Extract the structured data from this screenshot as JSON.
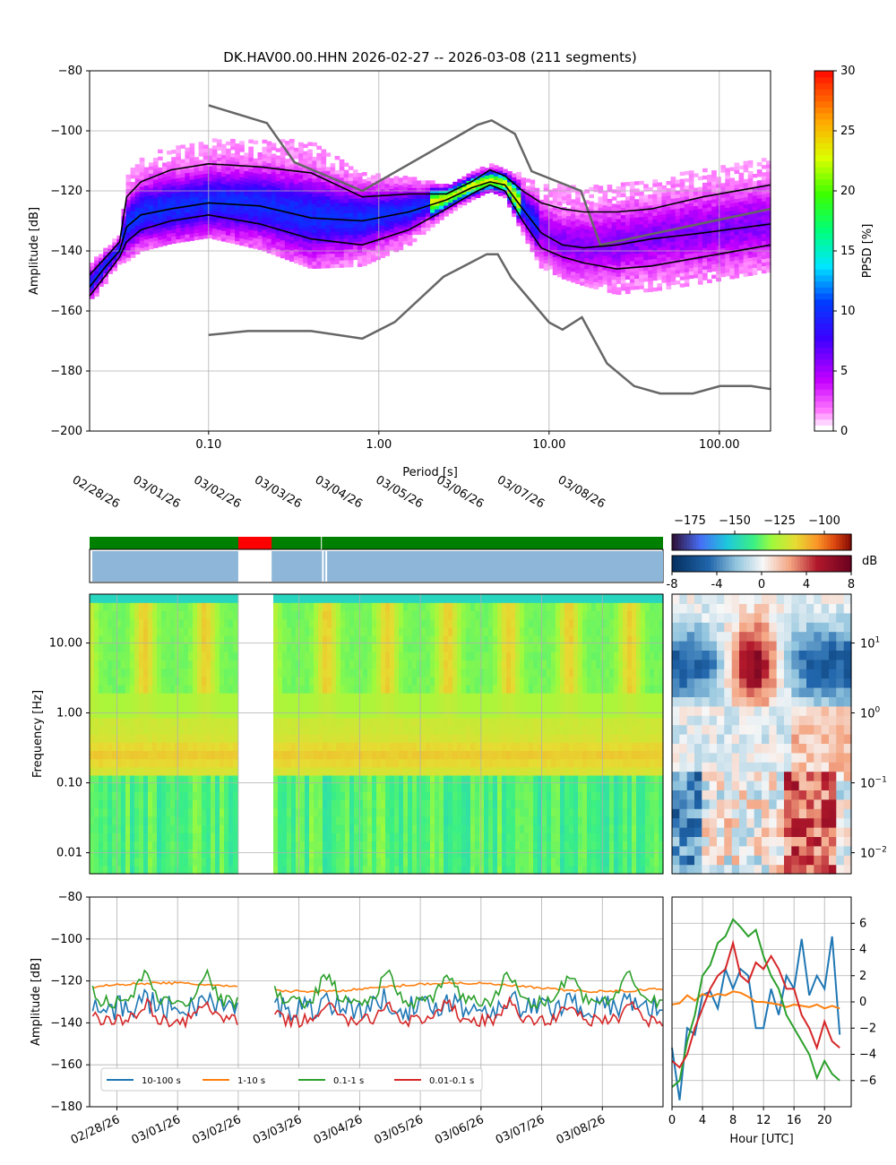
{
  "title": "DK.HAV00.00.HHN   2026-02-27 -- 2026-03-08  (211 segments)",
  "colors": {
    "model": "#666666",
    "percentile": "#000000",
    "grid": "#b0b0b0",
    "availability_ok": "#008000",
    "availability_gap": "#ff0000",
    "data_coverage": "#8db6d8",
    "band_10_100": "#1f77b4",
    "band_1_10": "#ff7f0e",
    "band_01_1": "#2ca02c",
    "band_001_01": "#d62728"
  },
  "chart_data": [
    {
      "id": "ppsd",
      "type": "heatmap",
      "xlabel": "Period [s]",
      "ylabel": "Amplitude [dB]",
      "xscale": "log",
      "xlim": [
        0.02,
        200
      ],
      "ylim": [
        -200,
        -80
      ],
      "xticks": [
        {
          "v": 0.1,
          "label": "0.10"
        },
        {
          "v": 1,
          "label": "1.00"
        },
        {
          "v": 10,
          "label": "10.00"
        },
        {
          "v": 100,
          "label": "100.00"
        }
      ],
      "yticks": [
        -200,
        -180,
        -160,
        -140,
        -120,
        -100,
        -80
      ],
      "ytick_labels": [
        "−200",
        "−180",
        "−160",
        "−140",
        "−120",
        "−100",
        "−80"
      ],
      "colorbar": {
        "label": "PPSD [%]",
        "min": 0,
        "max": 30,
        "ticks": [
          "0",
          "5",
          "10",
          "15",
          "20",
          "25",
          "30"
        ]
      },
      "nhnm": {
        "period": [
          0.1,
          0.22,
          0.32,
          0.8,
          3.8,
          4.6,
          6.3,
          7.9,
          15.4,
          20,
          200
        ],
        "db": [
          -91.5,
          -97.4,
          -110.5,
          -120,
          -98,
          -96.5,
          -101,
          -113.5,
          -120,
          -138,
          -126
        ]
      },
      "nlnm": {
        "period": [
          0.1,
          0.17,
          0.4,
          0.8,
          1.24,
          2.4,
          4.3,
          5,
          6,
          10,
          12,
          15.6,
          21.9,
          31.6,
          45,
          70,
          101,
          154,
          200
        ],
        "db": [
          -168,
          -166.7,
          -166.7,
          -169.2,
          -163.7,
          -148.6,
          -141.1,
          -141.1,
          -149,
          -163.8,
          -166.2,
          -162.1,
          -177.5,
          -185,
          -187.5,
          -187.5,
          -185,
          -185,
          -186
        ]
      },
      "median": {
        "period": [
          0.02,
          0.025,
          0.03,
          0.033,
          0.04,
          0.06,
          0.1,
          0.2,
          0.4,
          0.8,
          1.5,
          2.5,
          3.5,
          4.5,
          5.5,
          7,
          9,
          12,
          16,
          25,
          40,
          80,
          200
        ],
        "db": [
          -152,
          -145,
          -140,
          -132,
          -128,
          -126,
          -124,
          -125,
          -129,
          -130,
          -127,
          -123,
          -119,
          -117,
          -118,
          -126,
          -134,
          -138,
          -139,
          -138,
          -136,
          -134,
          -131
        ]
      },
      "p_low": {
        "period": [
          0.02,
          0.025,
          0.03,
          0.033,
          0.04,
          0.06,
          0.1,
          0.2,
          0.4,
          0.8,
          1.5,
          2.5,
          3.5,
          4.5,
          5.5,
          7,
          9,
          12,
          16,
          25,
          40,
          80,
          200
        ],
        "db": [
          -155,
          -148,
          -142,
          -137,
          -133,
          -130,
          -128,
          -131,
          -136,
          -138,
          -133,
          -126,
          -121,
          -118,
          -120,
          -130,
          -139,
          -142,
          -144,
          -146,
          -145,
          -142,
          -138
        ]
      },
      "p_high": {
        "period": [
          0.02,
          0.025,
          0.03,
          0.033,
          0.04,
          0.06,
          0.1,
          0.2,
          0.4,
          0.8,
          1.5,
          2.5,
          3.5,
          4.5,
          5.5,
          7,
          9,
          12,
          16,
          25,
          40,
          80,
          200
        ],
        "db": [
          -148,
          -142,
          -137,
          -122,
          -117,
          -113,
          -111,
          -112,
          -114,
          -122,
          -121,
          -121,
          -117,
          -113,
          -115,
          -120,
          -124,
          -126,
          -127,
          -127,
          -126,
          -122,
          -118
        ]
      }
    },
    {
      "id": "spectrogram",
      "type": "heatmap",
      "ylabel": "Frequency [Hz]",
      "yscale": "log",
      "ylim": [
        0.005,
        50
      ],
      "yticks": [
        {
          "v": 0.01,
          "label": "0.01"
        },
        {
          "v": 0.1,
          "label": "0.10"
        },
        {
          "v": 1,
          "label": "1.00"
        },
        {
          "v": 10,
          "label": "10.00"
        }
      ],
      "date_ticks": [
        "02/28/26",
        "03/01/26",
        "03/02/26",
        "03/03/26",
        "03/04/26",
        "03/05/26",
        "03/06/26",
        "03/07/26",
        "03/08/26"
      ],
      "xlim_days": [
        0,
        9.45
      ],
      "tick_days": [
        0.45,
        1.45,
        2.45,
        3.45,
        4.45,
        5.45,
        6.45,
        7.45,
        8.45
      ],
      "gap_days": [
        2.45,
        3.0
      ],
      "data_breaks_days": [
        3.83,
        3.9
      ],
      "colorbar_top": {
        "min": -185,
        "max": -85,
        "ticks": [
          {
            "v": -175,
            "label": "−175"
          },
          {
            "v": -150,
            "label": "−150"
          },
          {
            "v": -125,
            "label": "−125"
          },
          {
            "v": -100,
            "label": "−100"
          }
        ]
      },
      "colorbar_diff": {
        "label": "dB",
        "min": -8,
        "max": 8,
        "ticks": [
          {
            "v": -8,
            "label": "-8"
          },
          {
            "v": -4,
            "label": "-4"
          },
          {
            "v": 0,
            "label": "0"
          },
          {
            "v": 4,
            "label": "4"
          },
          {
            "v": 8,
            "label": "8"
          }
        ]
      },
      "diurnal_yticks": [
        {
          "v": 0.01,
          "base": "10",
          "exp": "−2"
        },
        {
          "v": 0.1,
          "base": "10",
          "exp": "−1"
        },
        {
          "v": 1,
          "base": "10",
          "exp": "0"
        },
        {
          "v": 10,
          "base": "10",
          "exp": "1"
        }
      ]
    },
    {
      "id": "band_timeseries",
      "type": "line",
      "ylabel": "Amplitude [dB]",
      "ylim": [
        -180,
        -80
      ],
      "yticks": [
        -180,
        -160,
        -140,
        -120,
        -100,
        -80
      ],
      "ytick_labels": [
        "−180",
        "−160",
        "−140",
        "−120",
        "−100",
        "−80"
      ],
      "legend": [
        "10-100 s",
        "1-10 s",
        "0.1-1 s",
        "0.01-0.1 s"
      ],
      "series": [
        {
          "name": "10-100 s",
          "base": -133,
          "noise": 6
        },
        {
          "name": "1-10 s",
          "base": -123,
          "noise": 1.2
        },
        {
          "name": "0.1-1 s",
          "base": -126,
          "noise": 3
        },
        {
          "name": "0.01-0.1 s",
          "base": -137,
          "noise": 3
        }
      ]
    },
    {
      "id": "diurnal",
      "type": "line",
      "xlabel": "Hour [UTC]",
      "xlim": [
        0,
        23.5
      ],
      "ylim": [
        -8,
        8
      ],
      "xticks": [
        0,
        4,
        8,
        12,
        16,
        20
      ],
      "yticks": [
        -6,
        -4,
        -2,
        0,
        2,
        4,
        6
      ],
      "ytick_labels": [
        "−6",
        "−4",
        "−2",
        "0",
        "2",
        "4",
        "6"
      ],
      "hours": [
        0,
        1,
        2,
        3,
        4,
        5,
        6,
        7,
        8,
        9,
        10,
        11,
        12,
        13,
        14,
        15,
        16,
        17,
        18,
        19,
        20,
        21,
        22
      ],
      "series": [
        {
          "name": "10-100 s",
          "values": [
            -3.5,
            -7.5,
            -2,
            -2.5,
            0.5,
            0.8,
            -0.5,
            2.5,
            1,
            2.5,
            2,
            -2,
            -2,
            1,
            -1,
            2,
            1,
            4.8,
            0.5,
            2,
            1,
            5,
            -2.5
          ]
        },
        {
          "name": "1-10 s",
          "values": [
            -0.2,
            -0.1,
            0.5,
            0.1,
            0.6,
            0.4,
            0.6,
            0.5,
            0.8,
            0.7,
            0.4,
            0.0,
            0.0,
            -0.1,
            -0.2,
            -0.4,
            -0.2,
            -0.3,
            -0.4,
            -0.2,
            -0.5,
            -0.3,
            -0.5
          ]
        },
        {
          "name": "0.1-1 s",
          "values": [
            -6.5,
            -6,
            -3,
            -1,
            2,
            2.8,
            4.5,
            5,
            6.3,
            5.7,
            5,
            5.5,
            3.5,
            2,
            1,
            -1,
            -2,
            -3,
            -4,
            -5.8,
            -4.5,
            -5.5,
            -6
          ]
        },
        {
          "name": "0.01-0.1 s",
          "values": [
            -4.5,
            -5,
            -4,
            -2,
            -0.5,
            1,
            2,
            2.5,
            4.5,
            2,
            1.5,
            3,
            2.5,
            3.5,
            2.5,
            1,
            1,
            -1,
            -2,
            -3.5,
            -1.5,
            -3,
            -3.5
          ]
        }
      ]
    }
  ]
}
